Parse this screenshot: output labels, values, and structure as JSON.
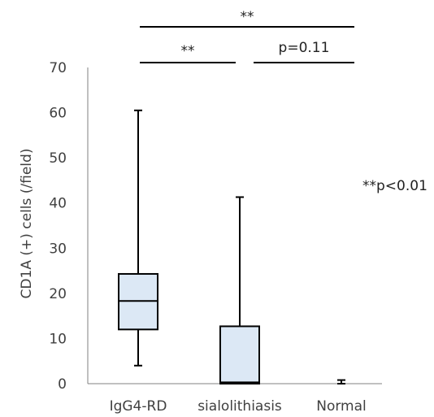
{
  "chart_data": {
    "type": "box",
    "ylabel": "CD1A (+) cells (/field)",
    "ylim": [
      0,
      70
    ],
    "yticks": [
      0,
      10,
      20,
      30,
      40,
      50,
      60,
      70
    ],
    "ytick_labels": [
      "0",
      "10",
      "20",
      "30",
      "40",
      "50",
      "60",
      "70"
    ],
    "categories": [
      "IgG4-RD",
      "sialolithiasis",
      "Normal"
    ],
    "boxes": [
      {
        "category": "IgG4-RD",
        "min": 4,
        "q1": 12,
        "median": 18.3,
        "q3": 24.3,
        "max": 60.5
      },
      {
        "category": "sialolithiasis",
        "min": 0,
        "q1": 0,
        "median": 0.3,
        "q3": 12.7,
        "max": 41.3
      },
      {
        "category": "Normal",
        "min": 0,
        "q1": 0,
        "median": 0,
        "q3": 0,
        "max": 0.8
      }
    ],
    "box_fill": "#dce8f5",
    "box_stroke": "#000000",
    "significance": [
      {
        "from": "IgG4-RD",
        "to": "Normal",
        "label": "**"
      },
      {
        "from": "IgG4-RD",
        "to": "sialolithiasis",
        "label": "**"
      },
      {
        "from": "sialolithiasis",
        "to": "Normal",
        "label": "p=0.11"
      }
    ],
    "annotation": "**p<0.01",
    "grid": false
  }
}
